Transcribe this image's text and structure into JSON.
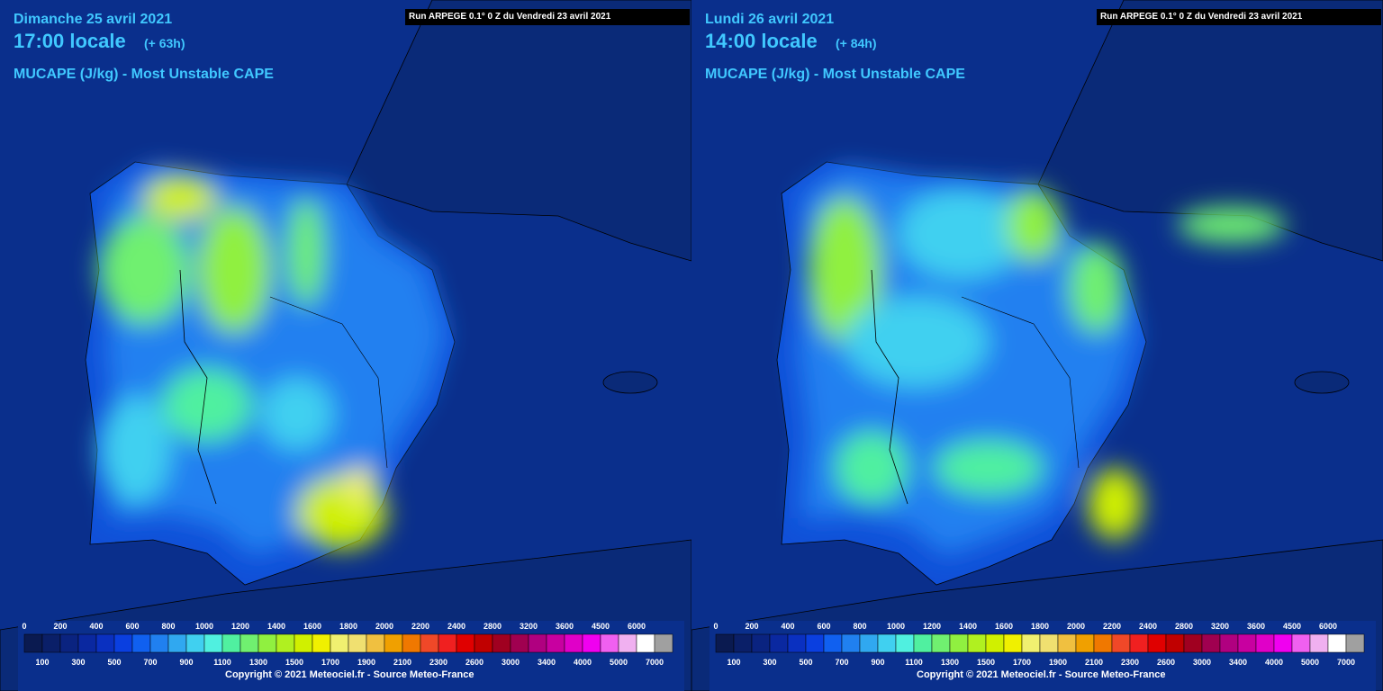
{
  "panels": [
    {
      "date": "Dimanche 25 avril 2021",
      "time": "17:00 locale",
      "lead": "(+ 63h)",
      "parameter": "MUCAPE (J/kg) - Most Unstable CAPE",
      "run": "Run ARPEGE 0.1° 0 Z du Vendredi 23 avril 2021",
      "copyright": "Copyright © 2021 Meteociel.fr - Source Meteo-France"
    },
    {
      "date": "Lundi 26 avril 2021",
      "time": "14:00 locale",
      "lead": "(+ 84h)",
      "parameter": "MUCAPE (J/kg) - Most Unstable CAPE",
      "run": "Run ARPEGE 0.1° 0 Z du Vendredi 23 avril 2021",
      "copyright": "Copyright © 2021 Meteociel.fr - Source Meteo-France"
    }
  ],
  "legend": {
    "top_labels": [
      0,
      200,
      400,
      600,
      800,
      1000,
      1200,
      1400,
      1600,
      1800,
      2000,
      2200,
      2400,
      2800,
      3200,
      3600,
      4500,
      6000
    ],
    "bottom_labels": [
      100,
      300,
      500,
      700,
      900,
      1100,
      1300,
      1500,
      1700,
      1900,
      2100,
      2300,
      2600,
      3000,
      3400,
      4000,
      5000,
      7000
    ],
    "colors": [
      "#0a1a50",
      "#0a1f68",
      "#0a2380",
      "#0a28a0",
      "#0a30c0",
      "#0a3fe0",
      "#1060f0",
      "#2080f0",
      "#30a8f0",
      "#40d0f0",
      "#50f0e0",
      "#50f0a0",
      "#70f070",
      "#90f040",
      "#b0f020",
      "#d0f000",
      "#f0f000",
      "#f0f070",
      "#f0e070",
      "#f0c040",
      "#f0a000",
      "#f07800",
      "#f04828",
      "#f02020",
      "#e00000",
      "#c00000",
      "#a00020",
      "#a00050",
      "#b00080",
      "#c800a0",
      "#e000c8",
      "#f000f0",
      "#f060f0",
      "#f0b0f0",
      "#ffffff",
      "#a0a0a0"
    ]
  }
}
